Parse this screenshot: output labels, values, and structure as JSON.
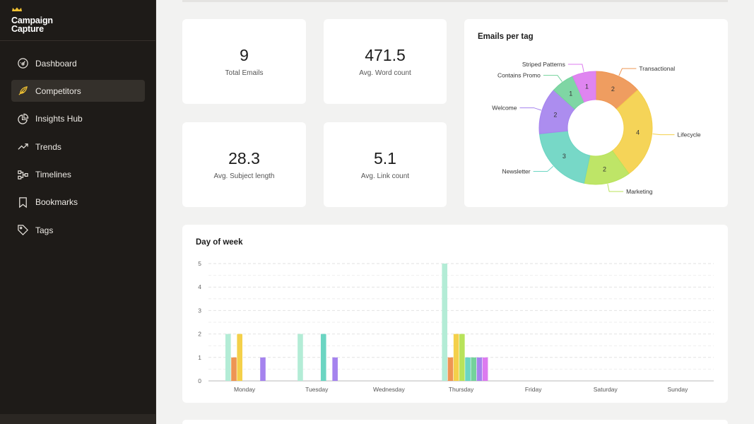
{
  "brand": {
    "line1": "Campaign",
    "line2": "Capture"
  },
  "sidebar": {
    "items": [
      {
        "label": "Dashboard",
        "icon": "dashboard-icon",
        "active": false
      },
      {
        "label": "Competitors",
        "icon": "feather-pen-icon",
        "active": true
      },
      {
        "label": "Insights Hub",
        "icon": "pie-chart-icon",
        "active": false
      },
      {
        "label": "Trends",
        "icon": "trend-line-icon",
        "active": false
      },
      {
        "label": "Timelines",
        "icon": "timeline-icon",
        "active": false
      },
      {
        "label": "Bookmarks",
        "icon": "bookmark-icon",
        "active": false
      },
      {
        "label": "Tags",
        "icon": "tag-icon",
        "active": false
      }
    ]
  },
  "stats": [
    {
      "value": "9",
      "label": "Total Emails"
    },
    {
      "value": "471.5",
      "label": "Avg. Word count"
    },
    {
      "value": "28.3",
      "label": "Avg. Subject length"
    },
    {
      "value": "5.1",
      "label": "Avg. Link count"
    }
  ],
  "donut": {
    "title": "Emails per tag",
    "colors": {
      "Transactional": "#ee9553",
      "Lifecycle": "#f4d04a",
      "Marketing": "#b8e35a",
      "Newsletter": "#6bd5c2",
      "Welcome": "#a583ee",
      "Contains Promo": "#74d29c",
      "Striped Patterns": "#dc7bef"
    }
  },
  "week": {
    "title": "Day of week"
  },
  "chart_data": [
    {
      "type": "pie",
      "title": "Emails per tag",
      "categories": [
        "Transactional",
        "Lifecycle",
        "Marketing",
        "Newsletter",
        "Welcome",
        "Contains Promo",
        "Striped Patterns"
      ],
      "values": [
        2,
        4,
        2,
        3,
        2,
        1,
        1
      ]
    },
    {
      "type": "bar",
      "title": "Day of week",
      "categories": [
        "Monday",
        "Tuesday",
        "Wednesday",
        "Thursday",
        "Friday",
        "Saturday",
        "Sunday"
      ],
      "ylim": [
        0,
        5
      ],
      "yticks": [
        0,
        1,
        2,
        3,
        4,
        5
      ],
      "grid": true,
      "series": [
        {
          "color": "#b3ecd6",
          "values": [
            2,
            2,
            0,
            5,
            0,
            0,
            0
          ]
        },
        {
          "color": "#ee9553",
          "values": [
            1,
            0,
            0,
            1,
            0,
            0,
            0
          ]
        },
        {
          "color": "#f4d04a",
          "values": [
            2,
            0,
            0,
            2,
            0,
            0,
            0
          ]
        },
        {
          "color": "#b8e35a",
          "values": [
            0,
            0,
            0,
            2,
            0,
            0,
            0
          ]
        },
        {
          "color": "#6bd5c2",
          "values": [
            0,
            2,
            0,
            1,
            0,
            0,
            0
          ]
        },
        {
          "color": "#74d29c",
          "values": [
            0,
            0,
            0,
            1,
            0,
            0,
            0
          ]
        },
        {
          "color": "#a583ee",
          "values": [
            1,
            1,
            0,
            1,
            0,
            0,
            0
          ]
        },
        {
          "color": "#dc7bef",
          "values": [
            0,
            0,
            0,
            1,
            0,
            0,
            0
          ]
        }
      ]
    }
  ]
}
